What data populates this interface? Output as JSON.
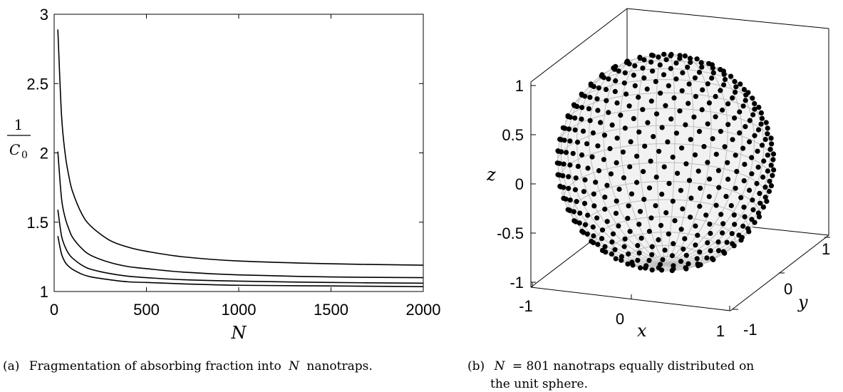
{
  "chart_data": [
    {
      "type": "line",
      "title": "",
      "xlabel": "N",
      "ylabel_numerator": "1",
      "ylabel_denominator": "C",
      "ylabel_subscript": "0",
      "xlim": [
        0,
        2000
      ],
      "ylim": [
        1,
        3
      ],
      "xticks": [
        0,
        500,
        1000,
        1500,
        2000
      ],
      "xtick_labels": [
        "0",
        "500",
        "1000",
        "1500",
        "2000"
      ],
      "yticks": [
        1,
        1.5,
        2,
        2.5,
        3
      ],
      "ytick_labels": [
        "1",
        "1.5",
        "2",
        "2.5",
        "3"
      ],
      "grid": false,
      "series": [
        {
          "x": [
            20,
            40,
            60,
            80,
            100,
            150,
            200,
            300,
            400,
            500,
            700,
            1000,
            1500,
            2000
          ],
          "y": [
            2.89,
            2.27,
            1.99,
            1.83,
            1.72,
            1.56,
            1.47,
            1.37,
            1.32,
            1.29,
            1.25,
            1.22,
            1.2,
            1.19
          ]
        },
        {
          "x": [
            20,
            40,
            60,
            80,
            100,
            150,
            200,
            300,
            400,
            500,
            700,
            1000,
            1500,
            2000
          ],
          "y": [
            2.01,
            1.67,
            1.53,
            1.45,
            1.39,
            1.31,
            1.26,
            1.21,
            1.18,
            1.165,
            1.14,
            1.12,
            1.105,
            1.1
          ]
        },
        {
          "x": [
            20,
            40,
            60,
            80,
            100,
            150,
            200,
            300,
            400,
            500,
            700,
            1000,
            1500,
            2000
          ],
          "y": [
            1.59,
            1.4,
            1.32,
            1.27,
            1.24,
            1.19,
            1.16,
            1.13,
            1.11,
            1.1,
            1.085,
            1.075,
            1.065,
            1.06
          ]
        },
        {
          "x": [
            20,
            40,
            60,
            80,
            100,
            150,
            200,
            300,
            400,
            500,
            700,
            1000,
            1500,
            2000
          ],
          "y": [
            1.4,
            1.27,
            1.21,
            1.18,
            1.16,
            1.125,
            1.105,
            1.085,
            1.07,
            1.065,
            1.055,
            1.045,
            1.04,
            1.035
          ]
        }
      ],
      "caption_label": "(a)",
      "caption_text_before": "Fragmentation of absorbing fraction into",
      "caption_var": "N",
      "caption_text_after": "nanotraps."
    },
    {
      "type": "scatter",
      "title": "",
      "xlabel": "x",
      "ylabel": "y",
      "zlabel": "z",
      "projection": "3d",
      "xlim": [
        -1,
        1
      ],
      "ylim": [
        -1,
        1
      ],
      "zlim": [
        -1,
        1
      ],
      "xtick_labels": [
        "-1",
        "0",
        "1"
      ],
      "ytick_labels": [
        "-1",
        "0",
        "1"
      ],
      "ztick_labels": [
        "-1",
        "-0.5",
        "0",
        "0.5",
        "1"
      ],
      "n_points": 801,
      "surface": "unit sphere",
      "point_color": "#000000",
      "mesh_color": "#bdbdbd",
      "caption_label": "(b)",
      "caption_var": "N",
      "caption_eq": "= 801 nanotraps equally distributed on",
      "caption_line2": "the unit sphere."
    }
  ]
}
